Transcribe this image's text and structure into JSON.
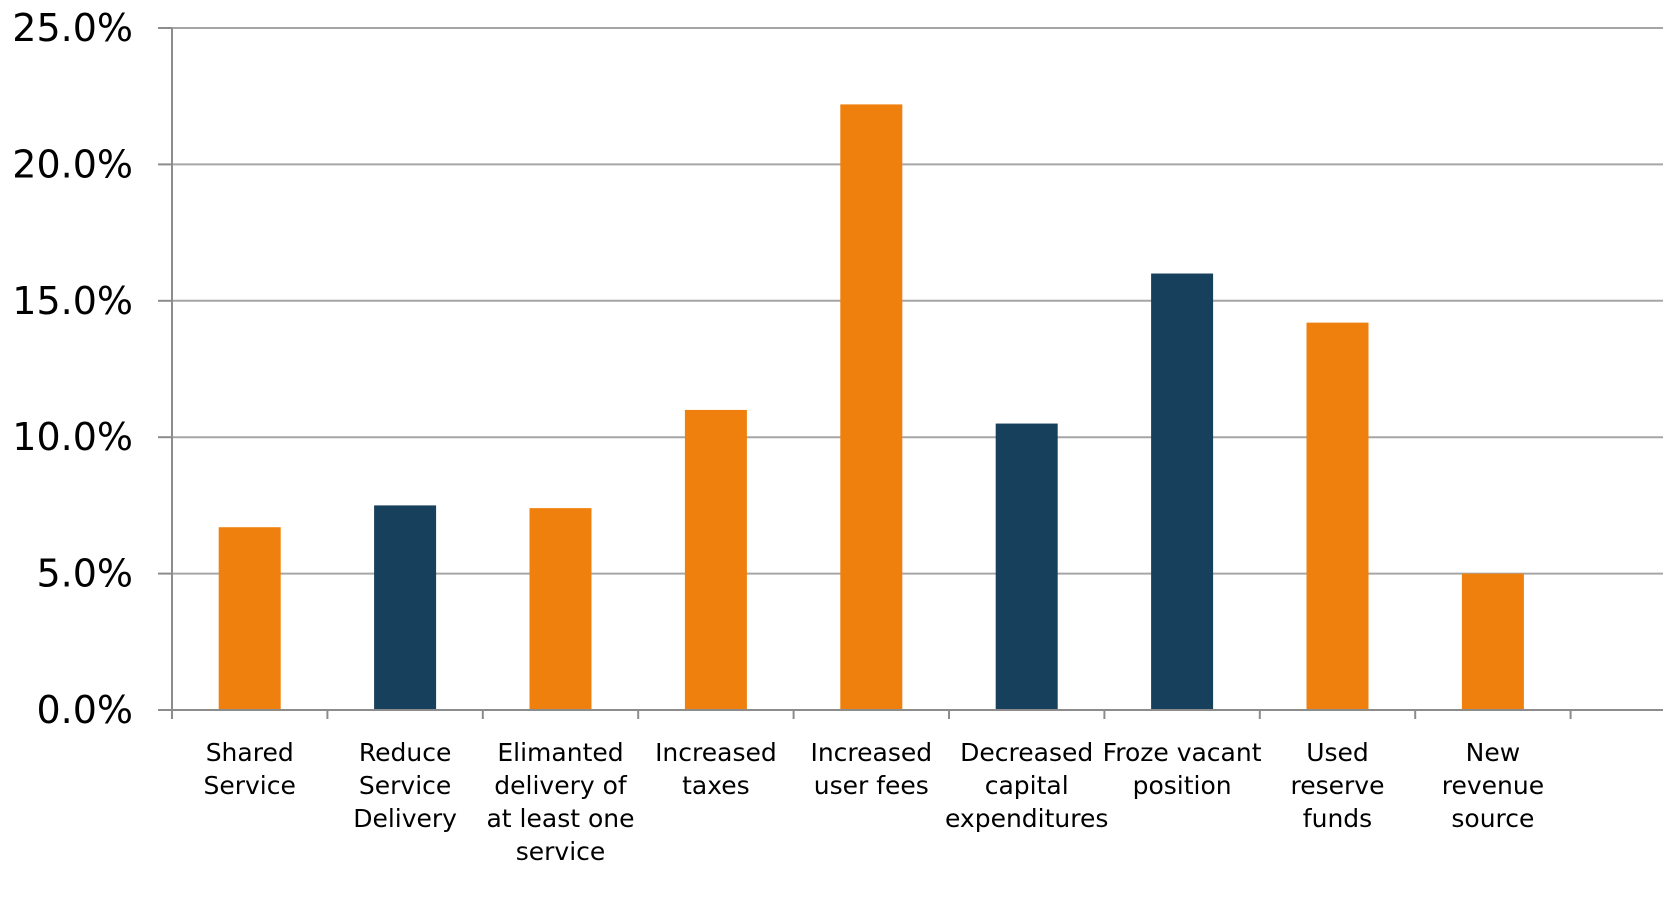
{
  "colors": {
    "orange": "#F0800E",
    "navy": "#17405C",
    "grid": "#A6A6A6",
    "axis": "#8C8C8C"
  },
  "chart_data": {
    "type": "bar",
    "title": "",
    "xlabel": "",
    "ylabel": "",
    "ylim": [
      0,
      25
    ],
    "y_ticks": [
      0,
      5,
      10,
      15,
      20,
      25
    ],
    "y_tick_labels": [
      "0.0%",
      "5.0%",
      "10.0%",
      "15.0%",
      "20.0%",
      "25.0%"
    ],
    "grid": true,
    "legend": "none",
    "categories": [
      [
        "Shared",
        "Service"
      ],
      [
        "Reduce",
        "Service",
        "Delivery"
      ],
      [
        "Elimanted",
        "delivery of",
        "at least one",
        "service"
      ],
      [
        "Increased",
        "taxes"
      ],
      [
        "Increased",
        "user fees"
      ],
      [
        "Decreased",
        "capital",
        "expenditures"
      ],
      [
        "Froze vacant",
        "position"
      ],
      [
        "Used",
        "reserve",
        "funds"
      ],
      [
        "New",
        "revenue",
        "source"
      ]
    ],
    "values": [
      6.7,
      7.5,
      7.4,
      11.0,
      22.2,
      10.5,
      16.0,
      14.2,
      5.0
    ],
    "bar_colors": [
      "orange",
      "navy",
      "orange",
      "orange",
      "orange",
      "navy",
      "navy",
      "orange",
      "orange"
    ]
  }
}
